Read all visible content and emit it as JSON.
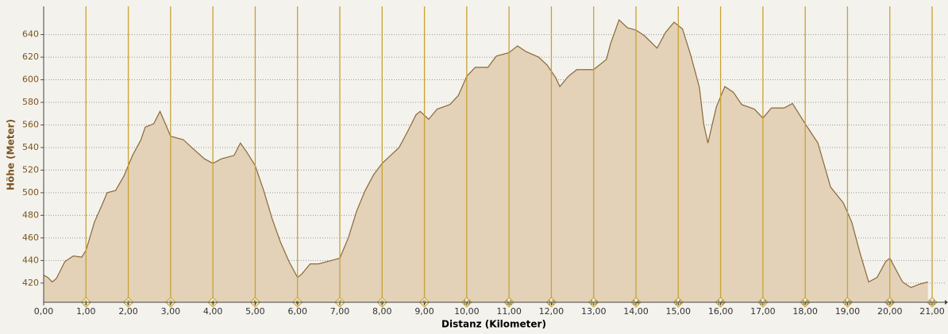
{
  "chart_data": {
    "type": "area",
    "x_label": "Distanz (Kilometer)",
    "y_label": "Höhe (Meter)",
    "x": [
      0.0,
      0.1,
      0.2,
      0.3,
      0.5,
      0.7,
      0.9,
      1.0,
      1.2,
      1.4,
      1.5,
      1.7,
      1.9,
      2.1,
      2.3,
      2.4,
      2.6,
      2.75,
      2.9,
      3.0,
      3.3,
      3.5,
      3.8,
      4.0,
      4.2,
      4.4,
      4.5,
      4.65,
      4.8,
      5.0,
      5.2,
      5.4,
      5.6,
      5.8,
      6.0,
      6.1,
      6.3,
      6.5,
      6.8,
      7.0,
      7.2,
      7.4,
      7.6,
      7.8,
      8.0,
      8.2,
      8.4,
      8.6,
      8.8,
      8.9,
      9.1,
      9.3,
      9.6,
      9.8,
      10.0,
      10.2,
      10.5,
      10.7,
      11.0,
      11.2,
      11.4,
      11.7,
      11.9,
      12.1,
      12.2,
      12.4,
      12.6,
      13.0,
      13.3,
      13.4,
      13.6,
      13.8,
      14.0,
      14.2,
      14.5,
      14.7,
      14.9,
      15.1,
      15.3,
      15.5,
      15.6,
      15.7,
      15.9,
      16.1,
      16.3,
      16.5,
      16.8,
      17.0,
      17.2,
      17.5,
      17.7,
      18.0,
      18.3,
      18.6,
      18.9,
      19.1,
      19.3,
      19.5,
      19.7,
      19.9,
      20.0,
      20.1,
      20.3,
      20.5,
      20.7,
      20.9
    ],
    "values": [
      427,
      425,
      421,
      424,
      439,
      444,
      443,
      449,
      474,
      491,
      500,
      502,
      515,
      533,
      547,
      558,
      561,
      572,
      559,
      550,
      547,
      540,
      530,
      526,
      530,
      532,
      533,
      544,
      536,
      524,
      502,
      477,
      456,
      439,
      425,
      428,
      437,
      437,
      440,
      442,
      460,
      484,
      502,
      516,
      526,
      533,
      540,
      554,
      569,
      572,
      565,
      574,
      578,
      586,
      603,
      611,
      611,
      621,
      624,
      630,
      625,
      620,
      613,
      602,
      594,
      603,
      609,
      609,
      618,
      632,
      653,
      646,
      644,
      639,
      628,
      642,
      651,
      645,
      621,
      593,
      561,
      544,
      576,
      594,
      589,
      578,
      574,
      566,
      575,
      575,
      579,
      561,
      544,
      505,
      491,
      474,
      446,
      421,
      425,
      439,
      442,
      435,
      421,
      416,
      419,
      421
    ],
    "color": "#e3d2b8",
    "line_color": "#8a6838",
    "xlim": [
      0,
      21.3
    ],
    "ylim": [
      403,
      665
    ],
    "xticks": [
      {
        "value": 0,
        "label": "0,00"
      },
      {
        "value": 1,
        "label": "1,00"
      },
      {
        "value": 2,
        "label": "2,00"
      },
      {
        "value": 3,
        "label": "3,00"
      },
      {
        "value": 4,
        "label": "4,00"
      },
      {
        "value": 5,
        "label": "5,00"
      },
      {
        "value": 6,
        "label": "6,00"
      },
      {
        "value": 7,
        "label": "7,00"
      },
      {
        "value": 8,
        "label": "8,00"
      },
      {
        "value": 9,
        "label": "9,00"
      },
      {
        "value": 10,
        "label": "10,00"
      },
      {
        "value": 11,
        "label": "11,00"
      },
      {
        "value": 12,
        "label": "12,00"
      },
      {
        "value": 13,
        "label": "13,00"
      },
      {
        "value": 14,
        "label": "14,00"
      },
      {
        "value": 15,
        "label": "15,00"
      },
      {
        "value": 16,
        "label": "16,00"
      },
      {
        "value": 17,
        "label": "17,00"
      },
      {
        "value": 18,
        "label": "18,00"
      },
      {
        "value": 19,
        "label": "19,00"
      },
      {
        "value": 20,
        "label": "20,00"
      },
      {
        "value": 21,
        "label": "21,00"
      }
    ],
    "yticks": [
      420,
      440,
      460,
      480,
      500,
      520,
      540,
      560,
      580,
      600,
      620,
      640
    ],
    "km_markers": [
      1,
      2,
      3,
      4,
      5,
      6,
      7,
      8,
      9,
      10,
      11,
      12,
      13,
      14,
      15,
      16,
      17,
      18,
      19,
      20,
      21
    ],
    "marker_color": "#c9a234",
    "grid": true
  }
}
